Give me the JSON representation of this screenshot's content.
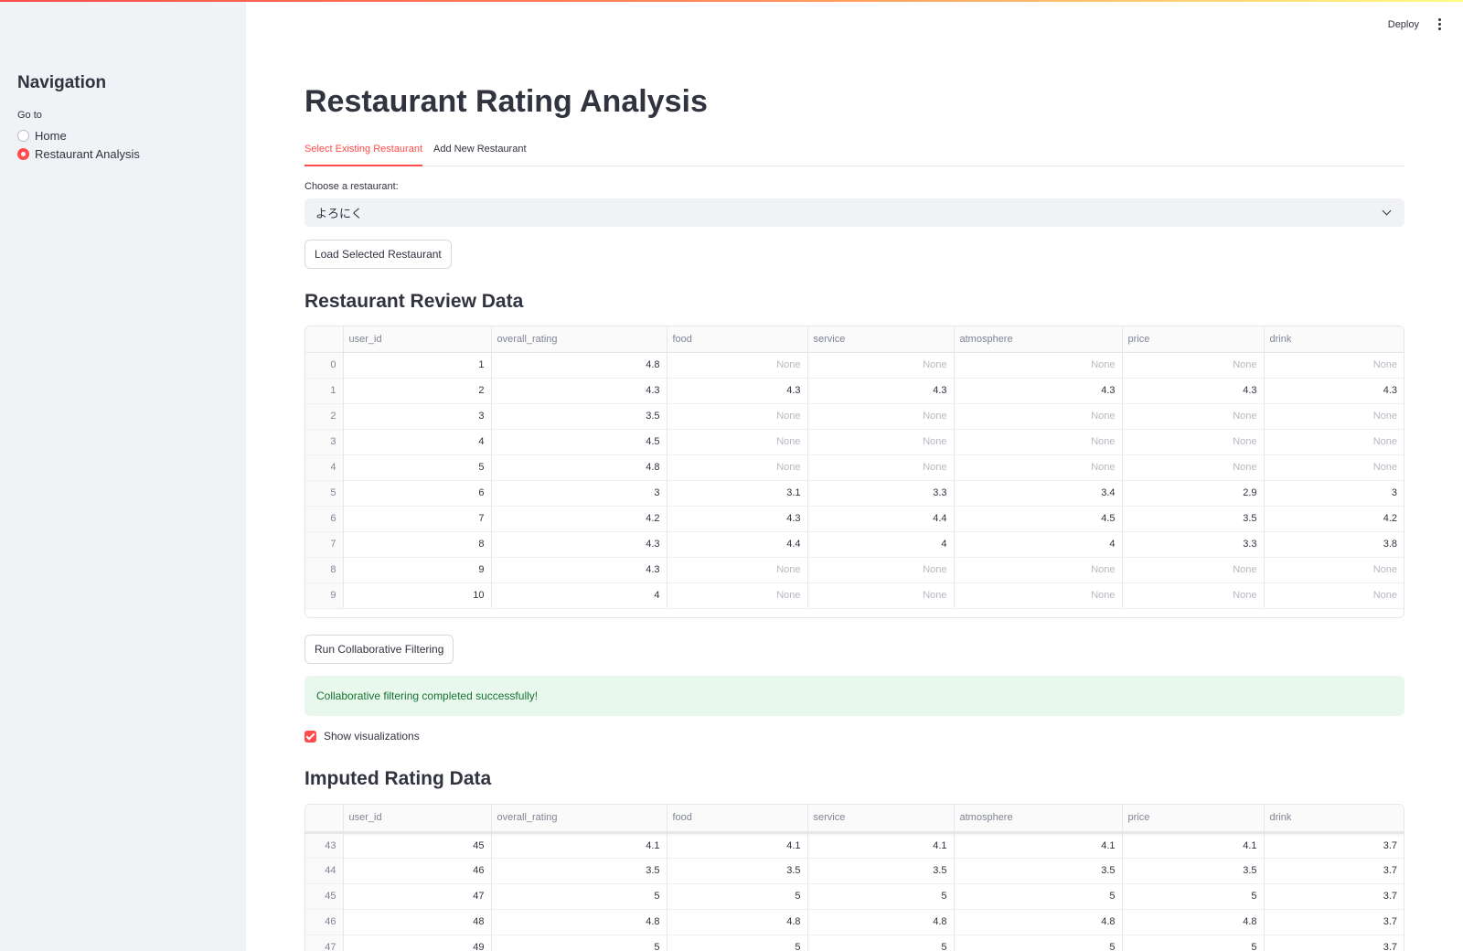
{
  "header": {
    "deploy_label": "Deploy"
  },
  "sidebar": {
    "title": "Navigation",
    "radio_label": "Go to",
    "options": [
      {
        "label": "Home",
        "selected": false
      },
      {
        "label": "Restaurant Analysis",
        "selected": true
      }
    ]
  },
  "main": {
    "title": "Restaurant Rating Analysis",
    "tabs": [
      {
        "label": "Select Existing Restaurant",
        "active": true
      },
      {
        "label": "Add New Restaurant",
        "active": false
      }
    ],
    "select_label": "Choose a restaurant:",
    "select_value": "よろにく",
    "load_button": "Load Selected Restaurant",
    "review_heading": "Restaurant Review Data",
    "run_button": "Run Collaborative Filtering",
    "success_message": "Collaborative filtering completed successfully!",
    "checkbox_label": "Show visualizations",
    "checkbox_checked": true,
    "imputed_heading": "Imputed Rating Data"
  },
  "review_table": {
    "columns": [
      "",
      "user_id",
      "overall_rating",
      "food",
      "service",
      "atmosphere",
      "price",
      "drink"
    ],
    "rows": [
      [
        "0",
        "1",
        "4.8",
        "None",
        "None",
        "None",
        "None",
        "None"
      ],
      [
        "1",
        "2",
        "4.3",
        "4.3",
        "4.3",
        "4.3",
        "4.3",
        "4.3"
      ],
      [
        "2",
        "3",
        "3.5",
        "None",
        "None",
        "None",
        "None",
        "None"
      ],
      [
        "3",
        "4",
        "4.5",
        "None",
        "None",
        "None",
        "None",
        "None"
      ],
      [
        "4",
        "5",
        "4.8",
        "None",
        "None",
        "None",
        "None",
        "None"
      ],
      [
        "5",
        "6",
        "3",
        "3.1",
        "3.3",
        "3.4",
        "2.9",
        "3"
      ],
      [
        "6",
        "7",
        "4.2",
        "4.3",
        "4.4",
        "4.5",
        "3.5",
        "4.2"
      ],
      [
        "7",
        "8",
        "4.3",
        "4.4",
        "4",
        "4",
        "3.3",
        "3.8"
      ],
      [
        "8",
        "9",
        "4.3",
        "None",
        "None",
        "None",
        "None",
        "None"
      ],
      [
        "9",
        "10",
        "4",
        "None",
        "None",
        "None",
        "None",
        "None"
      ]
    ]
  },
  "imputed_table": {
    "columns": [
      "",
      "user_id",
      "overall_rating",
      "food",
      "service",
      "atmosphere",
      "price",
      "drink"
    ],
    "rows": [
      [
        "43",
        "45",
        "4.1",
        "4.1",
        "4.1",
        "4.1",
        "4.1",
        "3.7"
      ],
      [
        "44",
        "46",
        "3.5",
        "3.5",
        "3.5",
        "3.5",
        "3.5",
        "3.7"
      ],
      [
        "45",
        "47",
        "5",
        "5",
        "5",
        "5",
        "5",
        "3.7"
      ],
      [
        "46",
        "48",
        "4.8",
        "4.8",
        "4.8",
        "4.8",
        "4.8",
        "3.7"
      ],
      [
        "47",
        "49",
        "5",
        "5",
        "5",
        "5",
        "5",
        "3.7"
      ]
    ]
  }
}
